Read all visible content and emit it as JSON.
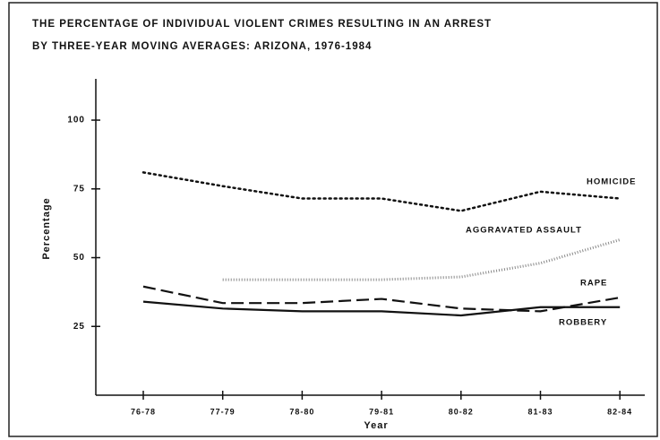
{
  "chart_data": {
    "type": "line",
    "title": "THE PERCENTAGE OF  INDIVIDUAL  VIOLENT CRIMES RESULTING IN AN ARREST",
    "subtitle": "BY THREE-YEAR MOVING AVERAGES:  ARIZONA,  1976-1984",
    "x_label": "Year",
    "y_label": "Percentage",
    "categories": [
      "76-78",
      "77-79",
      "78-80",
      "79-81",
      "80-82",
      "81-83",
      "82-84"
    ],
    "series": [
      {
        "name": "HOMICIDE",
        "color": "#111111",
        "dash": "dotted",
        "values": [
          81,
          76,
          71.5,
          71.5,
          67,
          74,
          71.5
        ]
      },
      {
        "name": "AGGRAVATED  ASSAULT",
        "color": "#888888",
        "dash": "stippled",
        "values": [
          null,
          42,
          42,
          42,
          43,
          48,
          56.5
        ]
      },
      {
        "name": "RAPE",
        "color": "#111111",
        "dash": "dashed",
        "values": [
          39.5,
          33.5,
          33.5,
          35,
          31.5,
          30.5,
          35.5
        ]
      },
      {
        "name": "ROBBERY",
        "color": "#111111",
        "dash": "solid",
        "values": [
          34,
          31.5,
          30.5,
          30.5,
          29,
          32,
          32
        ]
      }
    ],
    "ylim": [
      0,
      115
    ],
    "yticks": [
      25,
      50,
      75,
      100
    ],
    "grid": false
  }
}
